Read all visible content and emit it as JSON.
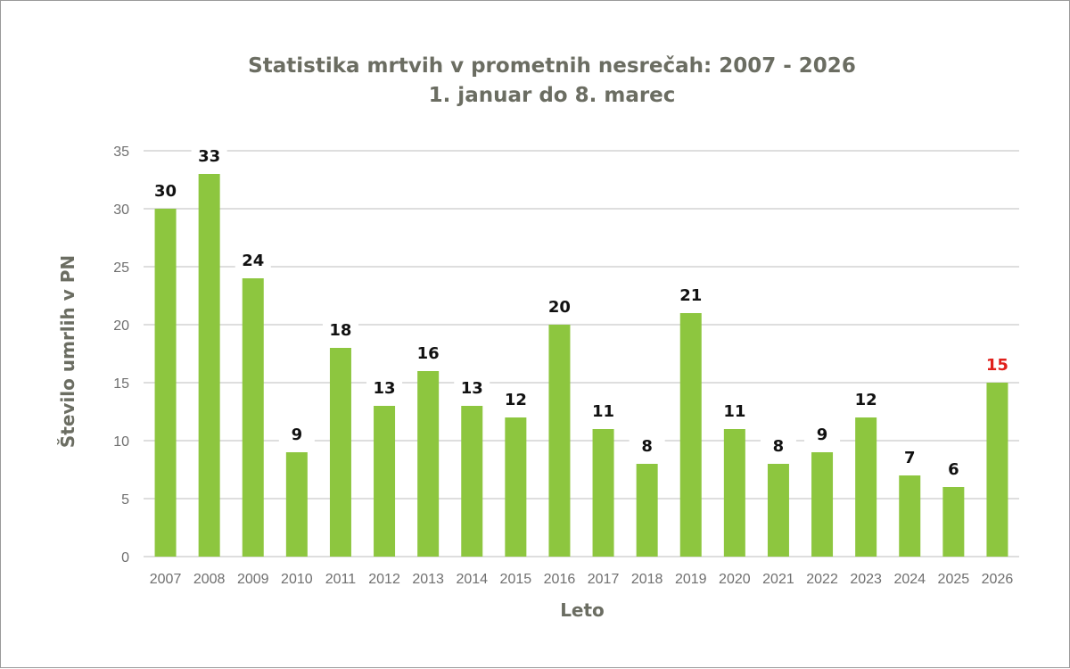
{
  "chart_data": {
    "type": "bar",
    "title": "Statistika mrtvih v prometnih nesrečah: 2007 - 2026",
    "subtitle": "1. januar do 8. marec",
    "xlabel": "Leto",
    "ylabel": "Število umrlih v PN",
    "ylim": [
      0,
      35
    ],
    "yticks": [
      "0",
      "5",
      "10",
      "15",
      "20",
      "25",
      "30",
      "35"
    ],
    "grid": true,
    "categories": [
      "2007",
      "2008",
      "2009",
      "2010",
      "2011",
      "2012",
      "2013",
      "2014",
      "2015",
      "2016",
      "2017",
      "2018",
      "2019",
      "2020",
      "2021",
      "2022",
      "2023",
      "2024",
      "2025",
      "2026"
    ],
    "values": [
      30,
      33,
      24,
      9,
      18,
      13,
      16,
      13,
      12,
      20,
      11,
      8,
      21,
      11,
      8,
      9,
      12,
      7,
      6,
      15
    ],
    "bar_color": "#8dc63f",
    "label_color": "#111111",
    "highlight_label_color": "#e0201b",
    "highlight_category": "2026"
  }
}
